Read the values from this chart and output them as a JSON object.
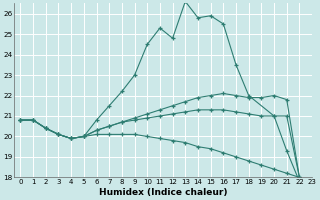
{
  "xlabel": "Humidex (Indice chaleur)",
  "xlim": [
    -0.5,
    23
  ],
  "ylim": [
    18,
    26.5
  ],
  "yticks": [
    18,
    19,
    20,
    21,
    22,
    23,
    24,
    25,
    26
  ],
  "xticks": [
    0,
    1,
    2,
    3,
    4,
    5,
    6,
    7,
    8,
    9,
    10,
    11,
    12,
    13,
    14,
    15,
    16,
    17,
    18,
    19,
    20,
    21,
    22,
    23
  ],
  "bg_color": "#cce8e8",
  "line_color": "#2e7d72",
  "grid_color": "#b8d8d8",
  "lines": [
    {
      "x": [
        0,
        1,
        2,
        3,
        4,
        5,
        6,
        7,
        8,
        9,
        10,
        11,
        12,
        13,
        14,
        15,
        16,
        17,
        18,
        20,
        21,
        22,
        23
      ],
      "y": [
        20.8,
        20.8,
        20.4,
        20.1,
        19.9,
        20.0,
        20.8,
        21.5,
        22.2,
        23.0,
        24.5,
        25.3,
        24.8,
        26.6,
        25.8,
        25.9,
        25.5,
        23.5,
        22.0,
        21.0,
        19.3,
        17.8,
        17.8
      ]
    },
    {
      "x": [
        0,
        1,
        2,
        3,
        4,
        5,
        6,
        7,
        8,
        9,
        10,
        11,
        12,
        13,
        14,
        15,
        16,
        17,
        18,
        19,
        20,
        21,
        22,
        23
      ],
      "y": [
        20.8,
        20.8,
        20.4,
        20.1,
        19.9,
        20.0,
        20.3,
        20.5,
        20.7,
        20.9,
        21.1,
        21.3,
        21.5,
        21.7,
        21.9,
        22.0,
        22.1,
        22.0,
        21.9,
        21.9,
        22.0,
        21.8,
        18.0,
        17.8
      ]
    },
    {
      "x": [
        0,
        1,
        2,
        3,
        4,
        5,
        6,
        7,
        8,
        9,
        10,
        11,
        12,
        13,
        14,
        15,
        16,
        17,
        18,
        19,
        20,
        21,
        22,
        23
      ],
      "y": [
        20.8,
        20.8,
        20.4,
        20.1,
        19.9,
        20.0,
        20.3,
        20.5,
        20.7,
        20.8,
        20.9,
        21.0,
        21.1,
        21.2,
        21.3,
        21.3,
        21.3,
        21.2,
        21.1,
        21.0,
        21.0,
        21.0,
        18.0,
        17.8
      ]
    },
    {
      "x": [
        0,
        1,
        2,
        3,
        4,
        5,
        6,
        7,
        8,
        9,
        10,
        11,
        12,
        13,
        14,
        15,
        16,
        17,
        18,
        19,
        20,
        21,
        22,
        23
      ],
      "y": [
        20.8,
        20.8,
        20.4,
        20.1,
        19.9,
        20.0,
        20.1,
        20.1,
        20.1,
        20.1,
        20.0,
        19.9,
        19.8,
        19.7,
        19.5,
        19.4,
        19.2,
        19.0,
        18.8,
        18.6,
        18.4,
        18.2,
        18.0,
        17.8
      ]
    }
  ]
}
